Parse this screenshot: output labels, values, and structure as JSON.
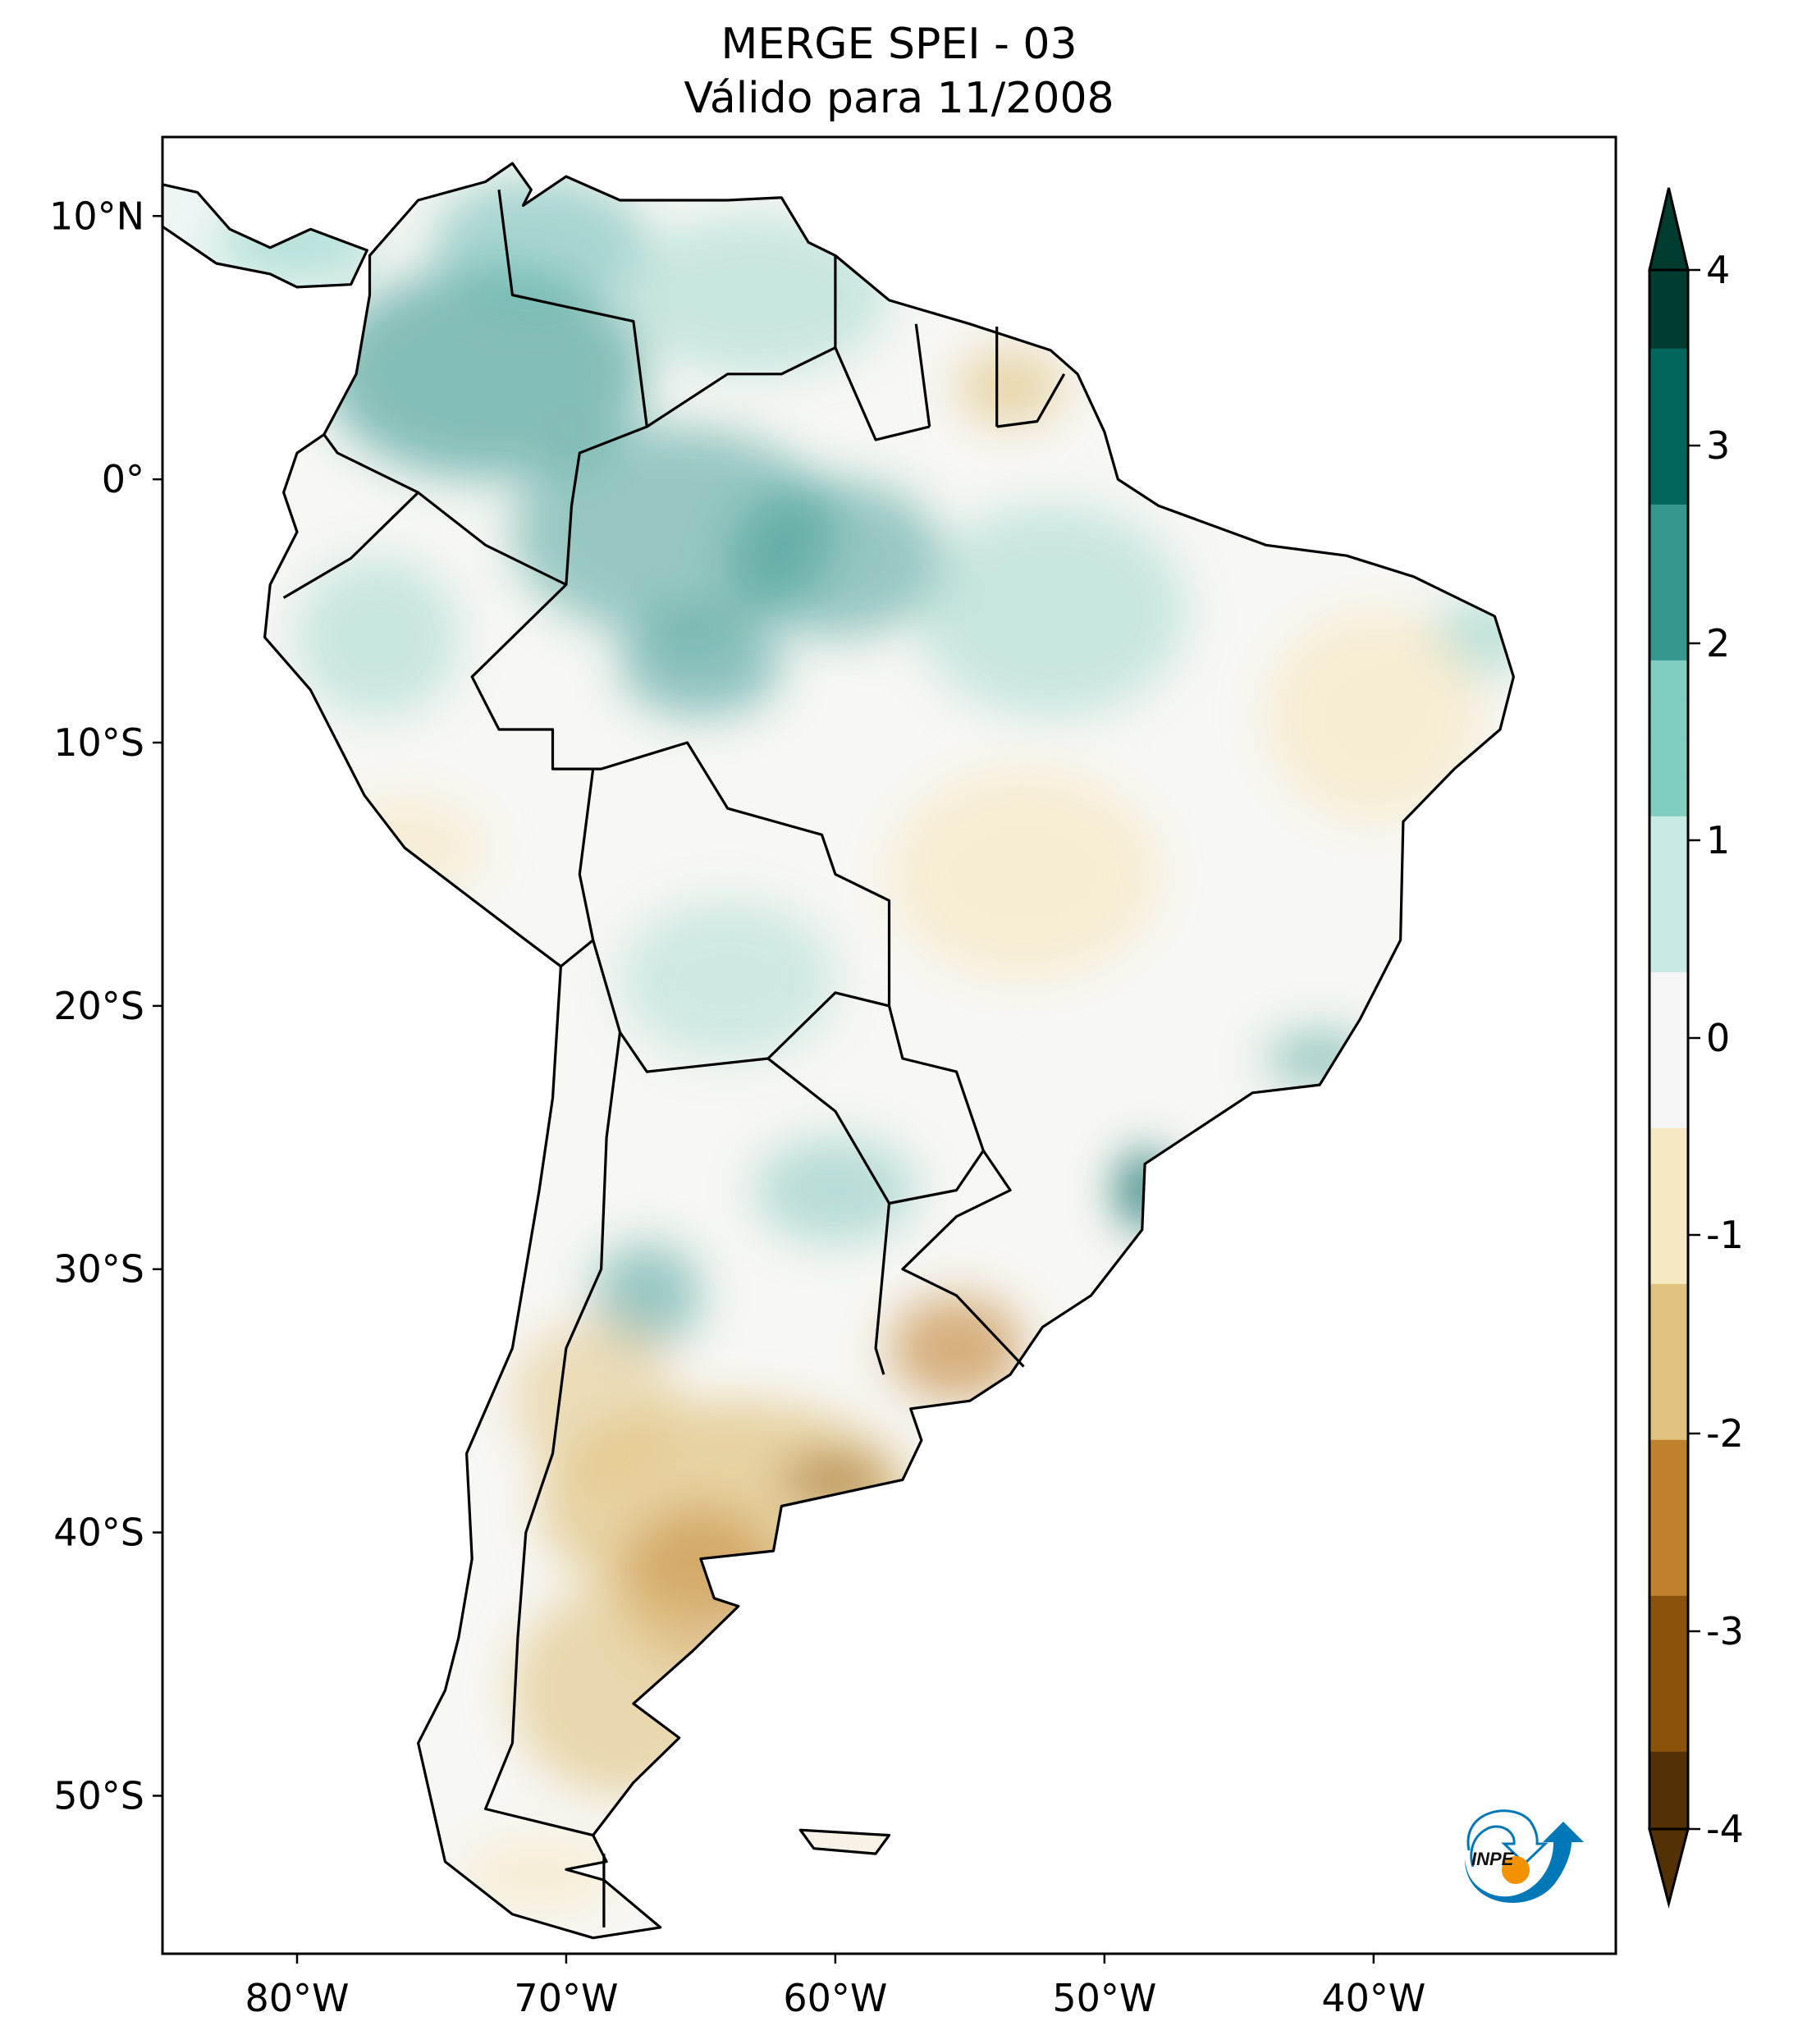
{
  "title": {
    "line1": "MERGE   SPEI - 03",
    "line2": "Válido para 11/2008"
  },
  "map": {
    "lon_ticks": [
      {
        "value": -80,
        "label": "80°W"
      },
      {
        "value": -70,
        "label": "70°W"
      },
      {
        "value": -60,
        "label": "60°W"
      },
      {
        "value": -50,
        "label": "50°W"
      },
      {
        "value": -40,
        "label": "40°W"
      }
    ],
    "lat_ticks": [
      {
        "value": 10,
        "label": "10°N"
      },
      {
        "value": 0,
        "label": "0°"
      },
      {
        "value": -10,
        "label": "10°S"
      },
      {
        "value": -20,
        "label": "20°S"
      },
      {
        "value": -30,
        "label": "30°S"
      },
      {
        "value": -40,
        "label": "40°S"
      },
      {
        "value": -50,
        "label": "50°S"
      }
    ],
    "extent": {
      "lon_min": -85,
      "lon_max": -31,
      "lat_min": -56,
      "lat_max": 13
    }
  },
  "colorbar": {
    "ticks": [
      "4",
      "3",
      "2",
      "1",
      "0",
      "-1",
      "-2",
      "-3",
      "-4"
    ],
    "range": [
      -4,
      4
    ],
    "extend": "both",
    "colors": [
      "#543005",
      "#8c510a",
      "#bf812d",
      "#dfc27d",
      "#f6e8c3",
      "#f5f5f5",
      "#c7eae5",
      "#80cdc1",
      "#35978f",
      "#01665e",
      "#003c30"
    ]
  },
  "logo": {
    "text": "INPE",
    "blue": "#0077b6",
    "orange": "#f39200"
  }
}
